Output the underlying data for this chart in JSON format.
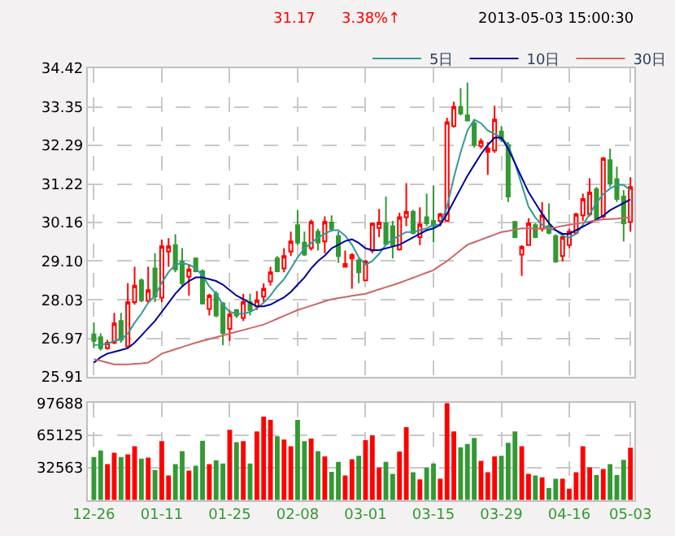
{
  "chart_data": [
    {
      "type": "candlestick",
      "annotations": [
        "31.17",
        "3.38%↑",
        "2013-05-03 15:00:30"
      ],
      "legend": "top right",
      "grid": true,
      "tick_labels": "y",
      "categories": [
        null,
        null,
        null,
        null,
        null,
        null,
        null,
        null,
        null,
        null,
        null,
        null,
        null,
        null,
        null,
        null,
        null,
        null,
        null,
        null,
        null,
        null,
        null,
        null,
        null,
        null,
        null,
        null,
        null,
        null,
        null,
        null,
        null,
        null,
        null,
        null,
        null,
        null,
        null,
        null,
        null,
        null,
        null,
        null,
        null,
        null,
        null,
        null,
        null,
        null,
        null,
        null,
        null,
        null,
        null,
        null,
        null,
        null,
        null,
        null,
        null,
        null,
        null,
        null,
        null,
        null,
        null,
        null,
        null,
        null,
        null,
        null,
        null,
        null,
        null,
        null,
        null,
        null,
        null,
        null
      ],
      "ylim": [
        25.91,
        34.42
      ],
      "yticks": [
        25.91,
        26.97,
        28.03,
        {
          "value": 29.1,
          "label": "29.10"
        },
        30.16,
        31.22,
        32.29,
        33.35,
        34.42
      ],
      "ohlc": [
        [
          27.08,
          27.41,
          26.7,
          26.9
        ],
        [
          27.0,
          27.11,
          26.63,
          26.7
        ],
        [
          26.7,
          26.93,
          26.66,
          26.85
        ],
        [
          26.85,
          27.67,
          26.81,
          27.38
        ],
        [
          27.45,
          27.67,
          26.85,
          26.93
        ],
        [
          26.75,
          28.49,
          26.7,
          27.97
        ],
        [
          27.97,
          28.94,
          27.9,
          28.42
        ],
        [
          28.57,
          28.62,
          27.97,
          28.02
        ],
        [
          28.0,
          28.94,
          27.97,
          28.3
        ],
        [
          28.9,
          29.32,
          27.97,
          28.12
        ],
        [
          28.09,
          29.69,
          27.97,
          29.51
        ],
        [
          29.36,
          29.73,
          28.94,
          29.51
        ],
        [
          29.54,
          29.84,
          28.79,
          28.87
        ],
        [
          29.09,
          29.46,
          28.42,
          28.49
        ],
        [
          28.67,
          29.02,
          28.15,
          28.87
        ],
        [
          29.17,
          29.2,
          28.79,
          28.82
        ],
        [
          28.82,
          28.87,
          27.9,
          27.93
        ],
        [
          27.78,
          28.2,
          27.6,
          28.15
        ],
        [
          28.2,
          28.27,
          27.55,
          27.6
        ],
        [
          27.93,
          27.97,
          26.78,
          27.12
        ],
        [
          27.23,
          27.75,
          26.9,
          27.63
        ],
        [
          27.75,
          27.78,
          27.53,
          27.6
        ],
        [
          27.53,
          28.2,
          27.45,
          27.97
        ],
        [
          27.97,
          28.2,
          27.6,
          27.75
        ],
        [
          27.85,
          28.27,
          27.75,
          28.02
        ],
        [
          28.12,
          28.49,
          27.97,
          28.34
        ],
        [
          28.54,
          28.94,
          28.42,
          28.79
        ],
        [
          29.17,
          29.24,
          28.79,
          28.82
        ],
        [
          28.9,
          29.46,
          28.79,
          29.24
        ],
        [
          29.36,
          29.91,
          29.24,
          29.64
        ],
        [
          30.09,
          30.51,
          29.54,
          29.61
        ],
        [
          29.61,
          29.91,
          29.24,
          29.28
        ],
        [
          29.46,
          30.24,
          29.39,
          30.18
        ],
        [
          29.91,
          29.99,
          29.39,
          29.61
        ],
        [
          29.64,
          30.33,
          29.32,
          30.18
        ],
        [
          30.16,
          30.36,
          29.91,
          29.99
        ],
        [
          29.79,
          29.91,
          29.05,
          29.24
        ],
        [
          28.94,
          29.39,
          28.94,
          29.02
        ],
        [
          29.17,
          29.32,
          28.34,
          29.27
        ],
        [
          29.12,
          29.17,
          28.49,
          28.79
        ],
        [
          28.57,
          29.14,
          28.57,
          29.09
        ],
        [
          29.39,
          30.14,
          29.32,
          30.14
        ],
        [
          30.01,
          30.54,
          29.76,
          30.16
        ],
        [
          30.14,
          30.88,
          29.54,
          29.57
        ],
        [
          30.06,
          30.21,
          29.17,
          29.54
        ],
        [
          29.42,
          30.43,
          29.39,
          30.31
        ],
        [
          30.31,
          31.25,
          30.06,
          30.46
        ],
        [
          30.46,
          30.51,
          29.84,
          29.87
        ],
        [
          29.76,
          30.58,
          29.54,
          30.11
        ],
        [
          30.31,
          30.96,
          30.06,
          30.14
        ],
        [
          30.21,
          31.18,
          29.61,
          30.06
        ],
        [
          30.21,
          30.43,
          30.06,
          30.39
        ],
        [
          30.21,
          33.05,
          30.21,
          32.93
        ],
        [
          32.82,
          33.49,
          32.78,
          33.35
        ],
        [
          33.35,
          33.87,
          33.12,
          33.17
        ],
        [
          33.12,
          34.02,
          32.97,
          32.97
        ],
        [
          32.9,
          32.97,
          32.23,
          32.3
        ],
        [
          32.27,
          32.48,
          32.2,
          32.4
        ],
        [
          32.11,
          32.38,
          31.48,
          32.2
        ],
        [
          32.15,
          33.38,
          32.08,
          33.0
        ],
        [
          32.67,
          32.82,
          32.38,
          32.45
        ],
        [
          32.3,
          32.38,
          30.73,
          30.88
        ],
        [
          30.18,
          30.21,
          29.73,
          29.76
        ],
        [
          29.28,
          29.54,
          28.69,
          29.49
        ],
        [
          29.54,
          30.28,
          29.54,
          30.14
        ],
        [
          30.09,
          30.14,
          29.73,
          29.76
        ],
        [
          29.99,
          30.73,
          29.91,
          30.36
        ],
        [
          30.06,
          30.69,
          29.84,
          29.88
        ],
        [
          29.79,
          29.84,
          29.05,
          29.09
        ],
        [
          29.24,
          29.84,
          29.09,
          29.76
        ],
        [
          29.54,
          29.99,
          29.46,
          29.91
        ],
        [
          29.88,
          30.43,
          29.84,
          30.39
        ],
        [
          30.36,
          30.96,
          30.21,
          30.81
        ],
        [
          30.39,
          31.38,
          30.33,
          30.99
        ],
        [
          31.08,
          31.14,
          30.21,
          30.28
        ],
        [
          30.33,
          31.97,
          30.28,
          31.93
        ],
        [
          31.88,
          32.2,
          31.14,
          31.23
        ],
        [
          31.36,
          31.7,
          30.73,
          30.81
        ],
        [
          30.88,
          31.06,
          29.64,
          30.14
        ],
        [
          30.18,
          31.41,
          29.91,
          31.14
        ]
      ],
      "series": [
        {
          "type": "line",
          "name": "5日",
          "color": "#339999",
          "values": [
            26.78,
            26.8,
            26.82,
            26.9,
            26.95,
            27.1,
            27.4,
            27.65,
            27.95,
            28.15,
            28.5,
            28.8,
            29.0,
            29.05,
            29.0,
            28.9,
            28.7,
            28.4,
            28.2,
            27.9,
            27.7,
            27.65,
            27.65,
            27.7,
            27.8,
            27.95,
            28.15,
            28.4,
            28.6,
            28.9,
            29.2,
            29.45,
            29.6,
            29.75,
            29.85,
            29.95,
            29.95,
            29.8,
            29.55,
            29.2,
            29.0,
            29.1,
            29.3,
            29.55,
            29.7,
            29.8,
            29.9,
            29.9,
            29.95,
            30.0,
            30.1,
            30.1,
            30.6,
            31.4,
            32.1,
            32.7,
            33.0,
            32.9,
            32.7,
            32.6,
            32.5,
            32.3,
            31.8,
            31.2,
            30.6,
            30.3,
            30.1,
            30.0,
            29.95,
            29.8,
            29.75,
            29.85,
            30.1,
            30.4,
            30.7,
            30.95,
            31.1,
            31.2,
            31.2,
            31.05
          ]
        },
        {
          "type": "line",
          "name": "10日",
          "color": "#000099",
          "values": [
            26.3,
            26.45,
            26.55,
            26.6,
            26.65,
            26.7,
            26.85,
            27.05,
            27.25,
            27.45,
            27.7,
            27.95,
            28.2,
            28.4,
            28.55,
            28.65,
            28.65,
            28.6,
            28.55,
            28.45,
            28.3,
            28.15,
            28.05,
            27.95,
            27.85,
            27.85,
            27.9,
            28.0,
            28.1,
            28.25,
            28.45,
            28.65,
            28.9,
            29.1,
            29.25,
            29.45,
            29.55,
            29.65,
            29.7,
            29.6,
            29.45,
            29.4,
            29.4,
            29.45,
            29.5,
            29.55,
            29.65,
            29.75,
            29.85,
            29.95,
            30.0,
            30.1,
            30.4,
            30.75,
            31.1,
            31.45,
            31.75,
            32.05,
            32.3,
            32.5,
            32.5,
            32.2,
            31.8,
            31.4,
            31.0,
            30.7,
            30.4,
            30.15,
            29.95,
            29.85,
            29.85,
            29.95,
            30.05,
            30.15,
            30.25,
            30.35,
            30.5,
            30.6,
            30.7,
            30.8
          ]
        },
        {
          "type": "line",
          "name": "30日",
          "color": "#cc6666",
          "values": [
            26.4,
            26.35,
            26.3,
            26.25,
            26.25,
            26.25,
            26.27,
            26.28,
            26.3,
            26.42,
            26.55,
            26.61,
            26.67,
            26.73,
            26.79,
            26.85,
            26.9,
            26.95,
            27.0,
            27.05,
            27.1,
            27.15,
            27.2,
            27.25,
            27.3,
            27.35,
            27.43,
            27.51,
            27.59,
            27.67,
            27.75,
            27.81,
            27.87,
            27.93,
            27.99,
            28.05,
            28.08,
            28.11,
            28.14,
            28.17,
            28.2,
            28.26,
            28.32,
            28.38,
            28.44,
            28.5,
            28.57,
            28.64,
            28.71,
            28.78,
            28.85,
            28.98,
            29.1,
            29.25,
            29.4,
            29.55,
            29.62,
            29.69,
            29.76,
            29.83,
            29.9,
            29.93,
            29.97,
            30.0,
            30.0,
            30.0,
            30.0,
            30.0,
            30.03,
            30.07,
            30.1,
            30.13,
            30.16,
            30.19,
            30.22,
            30.25,
            30.26,
            30.27,
            30.29,
            30.3
          ]
        }
      ]
    },
    {
      "type": "bar",
      "grid": true,
      "categories": [
        "12-26",
        null,
        null,
        null,
        null,
        null,
        null,
        null,
        null,
        null,
        "01-11",
        null,
        null,
        null,
        null,
        null,
        null,
        null,
        null,
        null,
        "01-25",
        null,
        null,
        null,
        null,
        null,
        null,
        null,
        null,
        null,
        "02-08",
        null,
        null,
        null,
        null,
        null,
        null,
        null,
        null,
        null,
        "03-01",
        null,
        null,
        null,
        null,
        null,
        null,
        null,
        null,
        null,
        "03-15",
        null,
        null,
        null,
        null,
        null,
        null,
        null,
        null,
        null,
        "03-29",
        null,
        null,
        null,
        null,
        null,
        null,
        null,
        null,
        null,
        "04-16",
        null,
        null,
        null,
        null,
        null,
        null,
        null,
        null,
        "05-03"
      ],
      "ylim": [
        0,
        97688
      ],
      "yticks": [
        32563,
        65125,
        97688
      ],
      "values": [
        43400,
        49900,
        36200,
        47700,
        43400,
        46100,
        54300,
        41700,
        42800,
        30200,
        59300,
        24700,
        36200,
        49400,
        29600,
        34600,
        59800,
        36200,
        40100,
        36800,
        70800,
        58200,
        59300,
        36800,
        69100,
        84000,
        80700,
        64200,
        60900,
        54300,
        80700,
        59300,
        62000,
        49400,
        43900,
        28500,
        38400,
        24700,
        41200,
        44500,
        60400,
        65300,
        32900,
        38400,
        26300,
        48800,
        73500,
        28000,
        20900,
        32900,
        36800,
        21400,
        97688,
        69100,
        53200,
        56500,
        62600,
        39500,
        28000,
        43900,
        44500,
        57600,
        69100,
        54300,
        26300,
        24700,
        23000,
        12100,
        21400,
        21400,
        11500,
        28000,
        54300,
        32900,
        25200,
        31300,
        36200,
        25200,
        40600,
        52700
      ],
      "colors": [
        "#339933",
        "#339933",
        "#ff0000",
        "#ff0000",
        "#339933",
        "#ff0000",
        "#ff0000",
        "#339933",
        "#ff0000",
        "#339933",
        "#ff0000",
        "#ff0000",
        "#339933",
        "#339933",
        "#ff0000",
        "#339933",
        "#339933",
        "#ff0000",
        "#339933",
        "#339933",
        "#ff0000",
        "#339933",
        "#ff0000",
        "#339933",
        "#ff0000",
        "#ff0000",
        "#ff0000",
        "#339933",
        "#ff0000",
        "#ff0000",
        "#339933",
        "#339933",
        "#ff0000",
        "#339933",
        "#ff0000",
        "#339933",
        "#339933",
        "#ff0000",
        "#ff0000",
        "#339933",
        "#ff0000",
        "#ff0000",
        "#ff0000",
        "#339933",
        "#339933",
        "#ff0000",
        "#ff0000",
        "#339933",
        "#ff0000",
        "#339933",
        "#339933",
        "#ff0000",
        "#ff0000",
        "#ff0000",
        "#339933",
        "#339933",
        "#339933",
        "#ff0000",
        "#ff0000",
        "#ff0000",
        "#339933",
        "#339933",
        "#339933",
        "#ff0000",
        "#ff0000",
        "#339933",
        "#ff0000",
        "#339933",
        "#339933",
        "#ff0000",
        "#ff0000",
        "#ff0000",
        "#ff0000",
        "#ff0000",
        "#339933",
        "#ff0000",
        "#339933",
        "#339933",
        "#339933",
        "#ff0000"
      ]
    }
  ]
}
